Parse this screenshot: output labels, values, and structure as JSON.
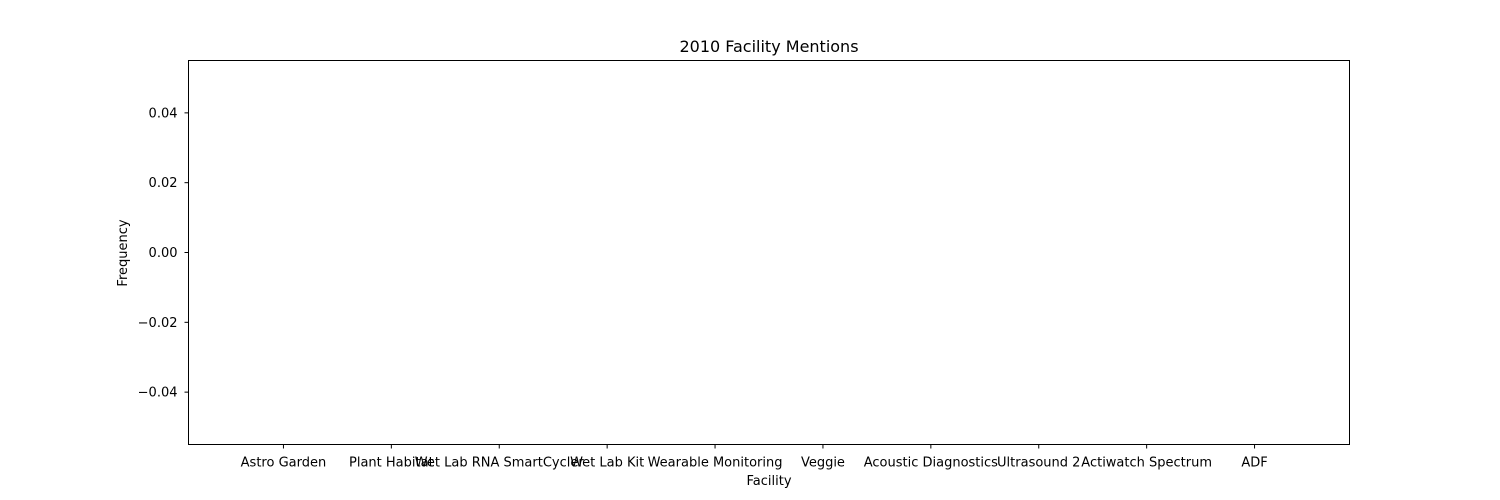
{
  "chart_data": {
    "type": "bar",
    "title": "2010 Facility Mentions",
    "xlabel": "Facility",
    "ylabel": "Frequency",
    "categories": [
      "Astro Garden",
      "Plant Habitat",
      "Wet Lab RNA SmartCycler",
      "Wet Lab Kit",
      "Wearable Monitoring",
      "Veggie",
      "Acoustic Diagnostics",
      "Ultrasound 2",
      "Actiwatch Spectrum",
      "ADF"
    ],
    "values": [
      0,
      0,
      0,
      0,
      0,
      0,
      0,
      0,
      0,
      0
    ],
    "ylim": [
      -0.055,
      0.055
    ],
    "yticks": [
      0.04,
      0.02,
      0.0,
      -0.02,
      -0.04
    ],
    "ytick_labels": [
      "0.04",
      "0.02",
      "0.00",
      "−0.02",
      "−0.04"
    ],
    "grid": false,
    "legend": "none",
    "colors": {
      "bar": "#1f77b4",
      "axis": "#000000",
      "background": "#ffffff"
    }
  }
}
